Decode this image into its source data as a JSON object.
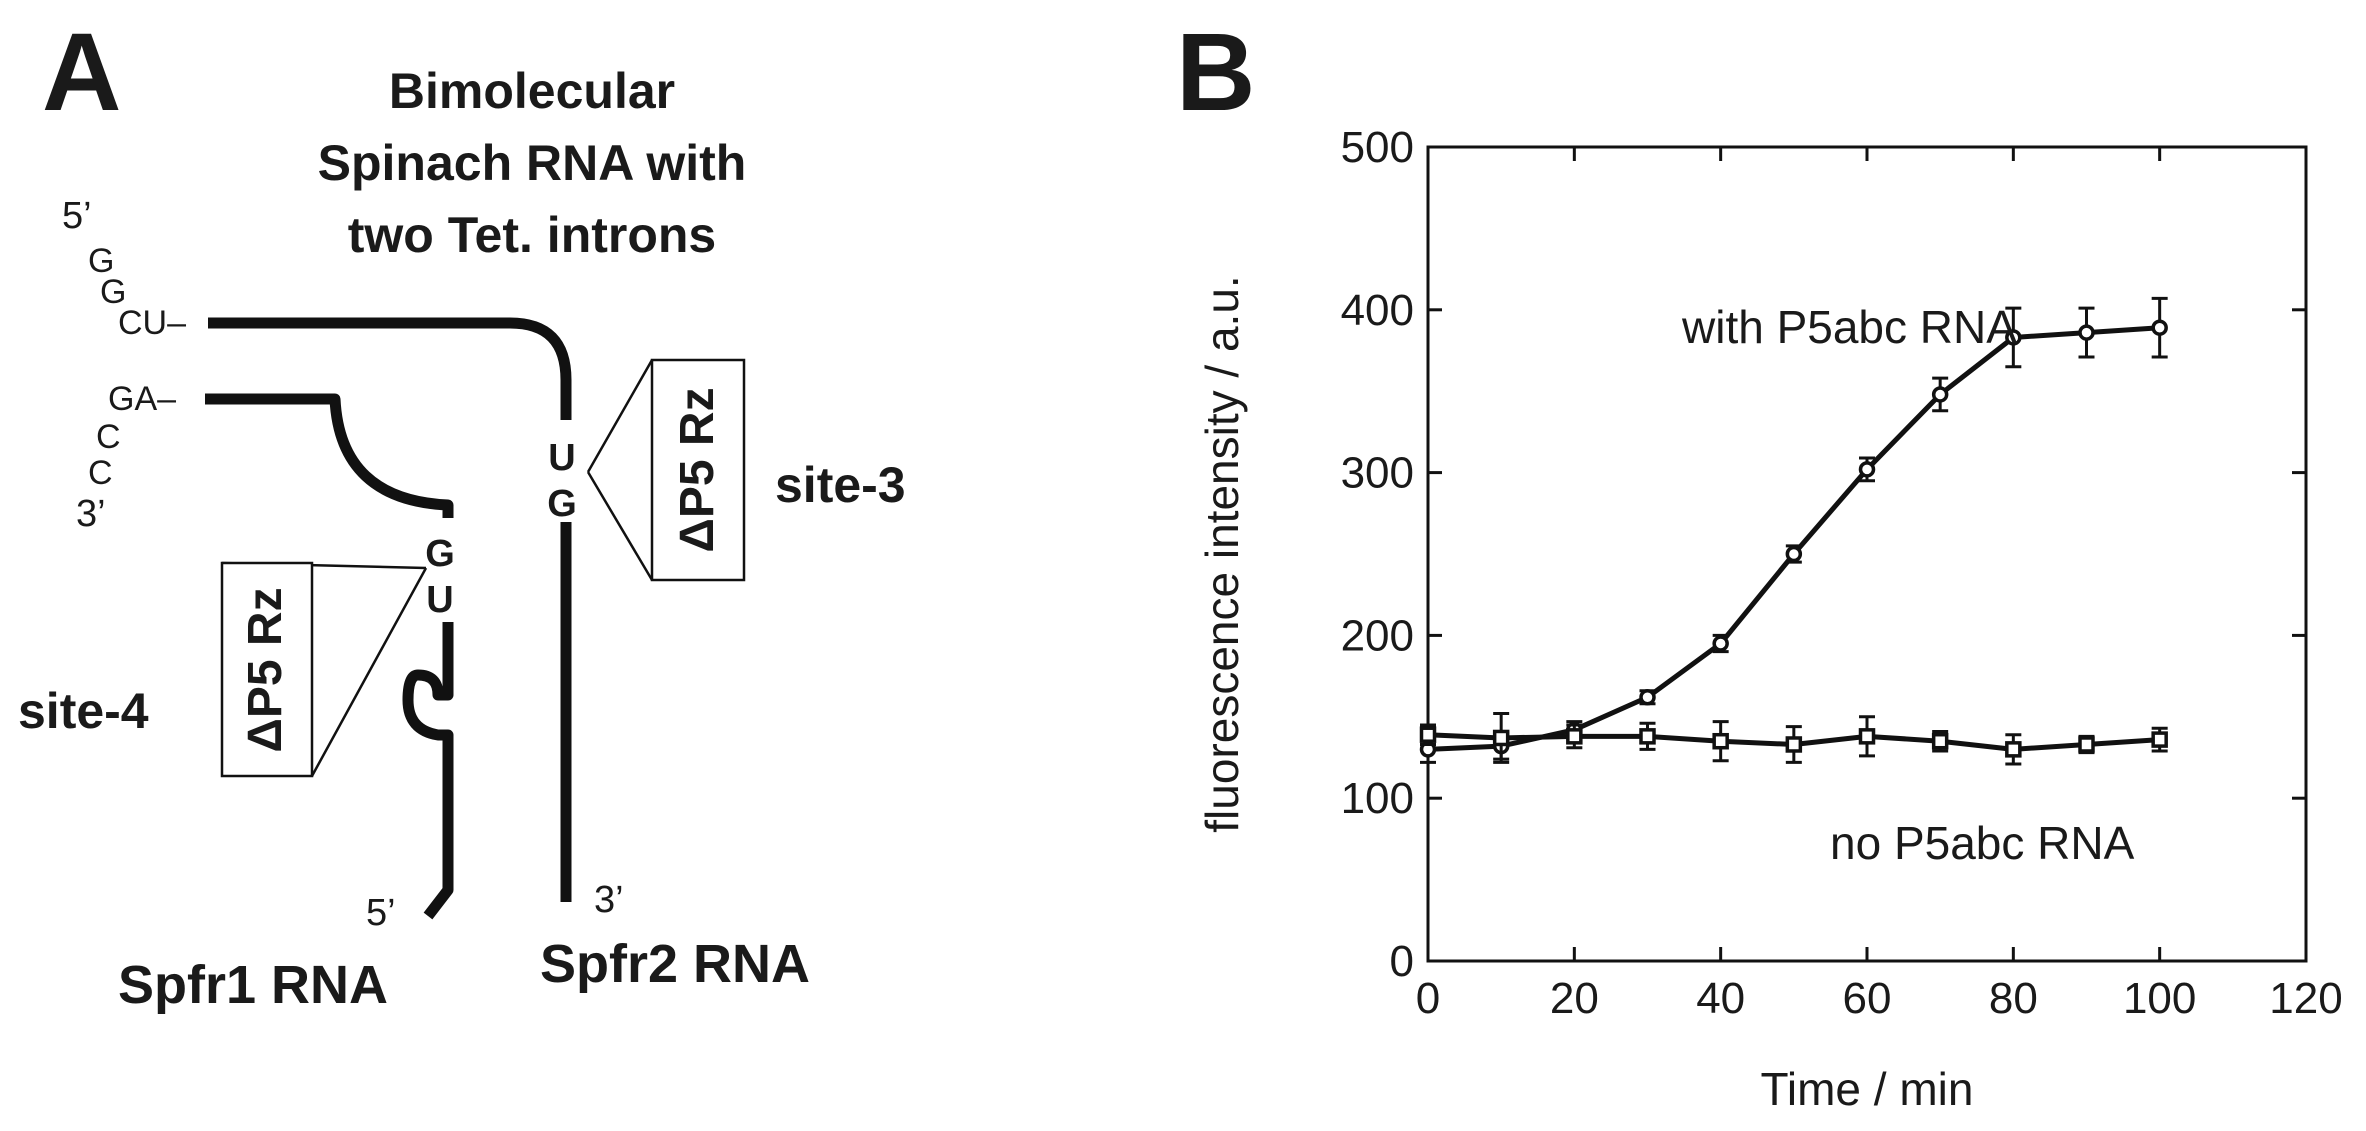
{
  "panel_a": {
    "panel_letter": "A",
    "title_lines": [
      "Bimolecular",
      "Spinach RNA with",
      "two Tet. introns"
    ],
    "seq_5prime": "5’",
    "seq_g1": "G",
    "seq_g2": "G",
    "seq_cu": "CU–",
    "seq_ga": "GA–",
    "seq_c1": "C",
    "seq_c2": "C",
    "seq_3prime": "3’",
    "site3": {
      "upper": "U",
      "lower": "G",
      "ribozyme": "ΔP5 Rz",
      "label": "site-3"
    },
    "site4": {
      "upper": "G",
      "lower": "U",
      "ribozyme": "ΔP5 Rz",
      "label": "site-4"
    },
    "spfr1_end": "5’",
    "spfr2_end": "3’",
    "spfr1_label": "Spfr1 RNA",
    "spfr2_label": "Spfr2 RNA",
    "colors": {
      "uridine": "#9b2f8f",
      "guanosine": "#1e73c8",
      "strand": "#111111"
    }
  },
  "panel_b": {
    "panel_letter": "B",
    "annotation_with": "with P5abc RNA",
    "annotation_no": "no P5abc RNA"
  },
  "chart_data": {
    "type": "line",
    "xlabel": "Time / min",
    "ylabel": "fluorescence intensity / a.u.",
    "xlim": [
      0,
      120
    ],
    "ylim": [
      0,
      500
    ],
    "xticks": [
      0,
      20,
      40,
      60,
      80,
      100,
      120
    ],
    "yticks": [
      0,
      100,
      200,
      300,
      400,
      500
    ],
    "grid": false,
    "series": [
      {
        "name": "with P5abc RNA",
        "marker": "circle",
        "x": [
          0,
          10,
          20,
          30,
          40,
          50,
          60,
          70,
          80,
          90,
          100
        ],
        "y": [
          130,
          132,
          142,
          162,
          195,
          250,
          302,
          348,
          383,
          386,
          389
        ],
        "err": [
          8,
          8,
          5,
          4,
          5,
          5,
          7,
          10,
          18,
          15,
          18
        ]
      },
      {
        "name": "no P5abc RNA",
        "marker": "square",
        "x": [
          0,
          10,
          20,
          30,
          40,
          50,
          60,
          70,
          80,
          90,
          100
        ],
        "y": [
          139,
          137,
          138,
          138,
          135,
          133,
          138,
          135,
          130,
          133,
          136
        ],
        "err": [
          6,
          15,
          7,
          8,
          12,
          11,
          12,
          6,
          9,
          5,
          7
        ]
      }
    ]
  }
}
